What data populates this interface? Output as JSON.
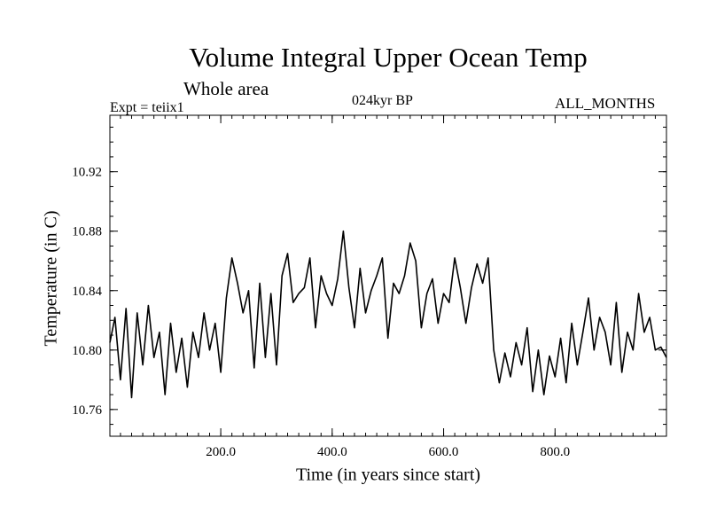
{
  "chart_data": {
    "type": "line",
    "title": "Volume Integral Upper Ocean Temp",
    "subtitle": "Whole area",
    "left_note": "Expt = teiix1",
    "center_note": "024kyr BP",
    "right_note": "ALL_MONTHS",
    "xlabel": "Time (in years since start)",
    "ylabel": "Temperature (in C)",
    "xlim": [
      1,
      1000
    ],
    "ylim": [
      10.742,
      10.958
    ],
    "xticks": [
      200,
      400,
      600,
      800
    ],
    "xtick_labels": [
      "200.0",
      "400.0",
      "600.0",
      "800.0"
    ],
    "yticks": [
      10.76,
      10.8,
      10.84,
      10.88,
      10.92
    ],
    "ytick_labels": [
      "10.76",
      "10.80",
      "10.84",
      "10.88",
      "10.92"
    ],
    "grid": false,
    "line_color": "#000000",
    "series": [
      {
        "x": [
          1,
          10,
          20,
          30,
          40,
          50,
          60,
          70,
          80,
          90,
          100,
          110,
          120,
          130,
          140,
          150,
          160,
          170,
          180,
          190,
          200,
          210,
          220,
          230,
          240,
          250,
          260,
          270,
          280,
          290,
          300,
          310,
          320,
          330,
          340,
          350,
          360,
          370,
          380,
          390,
          400,
          410,
          420,
          430,
          440,
          450,
          460,
          470,
          480,
          490,
          500,
          510,
          520,
          530,
          540,
          550,
          560,
          570,
          580,
          590,
          600,
          610,
          620,
          630,
          640,
          650,
          660,
          670,
          680,
          690,
          700,
          710,
          720,
          730,
          740,
          750,
          760,
          770,
          780,
          790,
          800,
          810,
          820,
          830,
          840,
          850,
          860,
          870,
          880,
          890,
          900,
          910,
          920,
          930,
          940,
          950,
          960,
          970,
          980,
          990,
          1000
        ],
        "values": [
          10.805,
          10.822,
          10.78,
          10.828,
          10.768,
          10.825,
          10.79,
          10.83,
          10.795,
          10.812,
          10.77,
          10.818,
          10.785,
          10.808,
          10.775,
          10.812,
          10.795,
          10.825,
          10.8,
          10.818,
          10.785,
          10.835,
          10.862,
          10.845,
          10.825,
          10.84,
          10.788,
          10.845,
          10.795,
          10.838,
          10.79,
          10.85,
          10.865,
          10.832,
          10.838,
          10.842,
          10.862,
          10.815,
          10.85,
          10.838,
          10.83,
          10.848,
          10.88,
          10.842,
          10.815,
          10.855,
          10.825,
          10.84,
          10.85,
          10.862,
          10.808,
          10.845,
          10.838,
          10.85,
          10.872,
          10.86,
          10.815,
          10.838,
          10.848,
          10.818,
          10.838,
          10.832,
          10.862,
          10.842,
          10.818,
          10.842,
          10.858,
          10.845,
          10.862,
          10.8,
          10.778,
          10.798,
          10.782,
          10.805,
          10.79,
          10.815,
          10.772,
          10.8,
          10.77,
          10.796,
          10.782,
          10.808,
          10.778,
          10.818,
          10.79,
          10.812,
          10.835,
          10.8,
          10.822,
          10.812,
          10.79,
          10.832,
          10.785,
          10.812,
          10.8,
          10.838,
          10.812,
          10.822,
          10.8,
          10.802,
          10.795
        ]
      }
    ]
  }
}
